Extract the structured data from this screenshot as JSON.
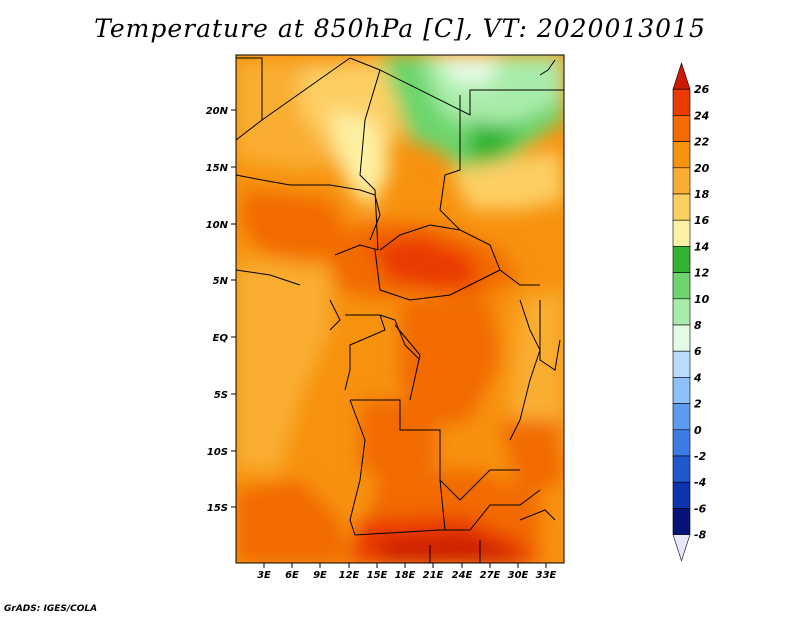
{
  "title": "Temperature at 850hPa [C], VT: 2020013015",
  "credit": "GrADS: IGES/COLA",
  "map": {
    "lat_labels": [
      "20N",
      "15N",
      "10N",
      "5N",
      "EQ",
      "5S",
      "10S",
      "15S"
    ],
    "lon_labels": [
      "3E",
      "6E",
      "9E",
      "12E",
      "15E",
      "18E",
      "21E",
      "24E",
      "27E",
      "30E",
      "33E"
    ]
  },
  "colorbar": {
    "levels": [
      "26",
      "24",
      "22",
      "20",
      "18",
      "16",
      "14",
      "12",
      "10",
      "8",
      "6",
      "4",
      "2",
      "0",
      "-2",
      "-4",
      "-6",
      "-8"
    ],
    "colors": [
      "#cc1b00",
      "#ea3a00",
      "#f26a00",
      "#f7920f",
      "#f9ae33",
      "#fccf63",
      "#fdf0a2",
      "#32b432",
      "#6cd56c",
      "#a9eca9",
      "#e3fbe3",
      "#b8dbff",
      "#8cc0fa",
      "#5b9cf0",
      "#3a7de6",
      "#1f58cf",
      "#0c34ae",
      "#06137a",
      "#e6e6ff"
    ]
  }
}
